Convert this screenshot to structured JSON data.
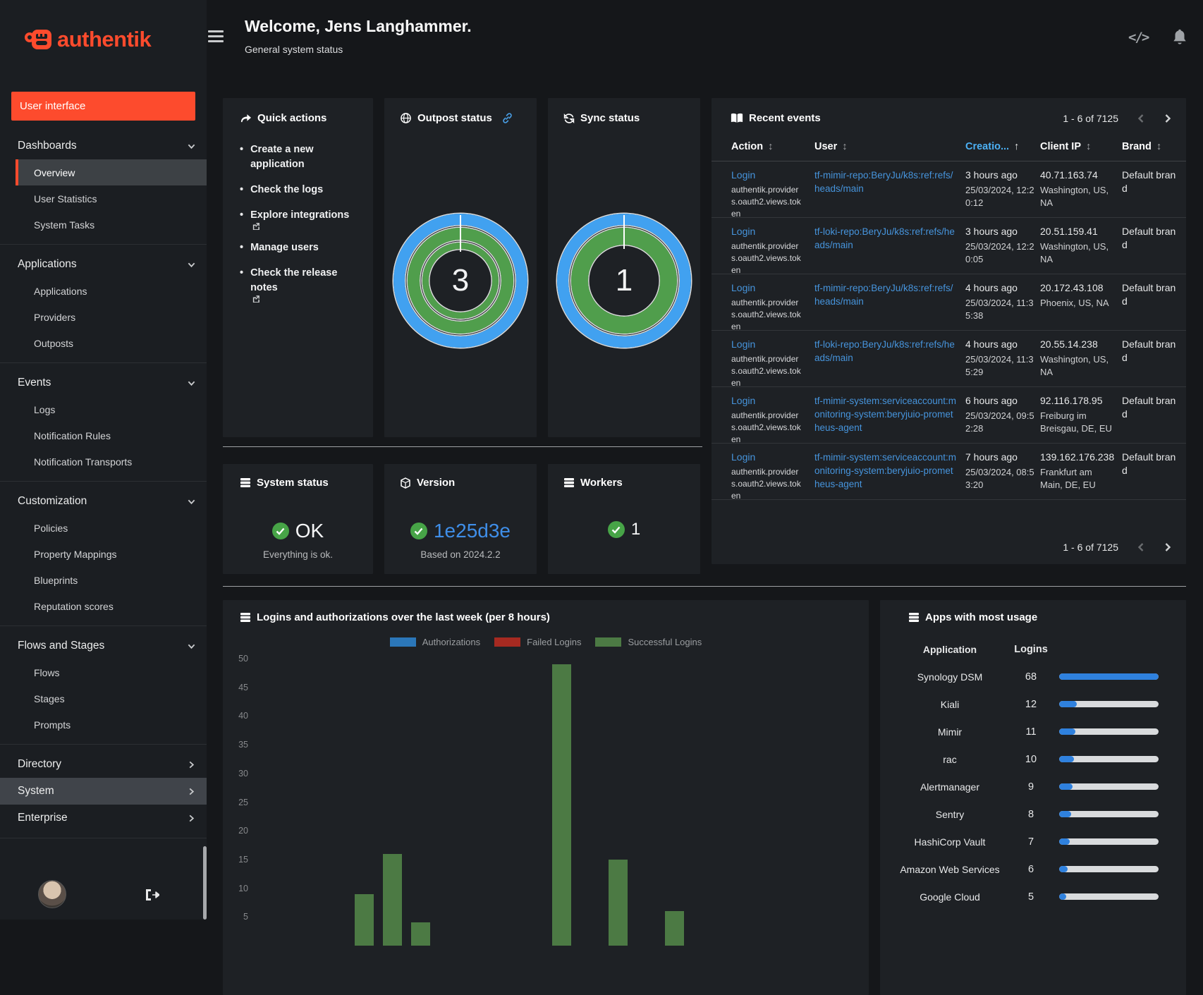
{
  "app": {
    "brand": "authentik"
  },
  "header": {
    "title": "Welcome, Jens Langhammer.",
    "subtitle": "General system status"
  },
  "sidebar": {
    "user_interface_label": "User interface",
    "groups": [
      {
        "label": "Dashboards",
        "state": "expanded",
        "items": [
          {
            "label": "Overview",
            "active": true
          },
          {
            "label": "User Statistics"
          },
          {
            "label": "System Tasks"
          }
        ]
      },
      {
        "label": "Applications",
        "state": "expanded",
        "items": [
          {
            "label": "Applications"
          },
          {
            "label": "Providers"
          },
          {
            "label": "Outposts"
          }
        ]
      },
      {
        "label": "Events",
        "state": "expanded",
        "items": [
          {
            "label": "Logs"
          },
          {
            "label": "Notification Rules"
          },
          {
            "label": "Notification Transports"
          }
        ]
      },
      {
        "label": "Customization",
        "state": "expanded",
        "items": [
          {
            "label": "Policies"
          },
          {
            "label": "Property Mappings"
          },
          {
            "label": "Blueprints"
          },
          {
            "label": "Reputation scores"
          }
        ]
      },
      {
        "label": "Flows and Stages",
        "state": "expanded",
        "items": [
          {
            "label": "Flows"
          },
          {
            "label": "Stages"
          },
          {
            "label": "Prompts"
          }
        ]
      },
      {
        "label": "Directory",
        "state": "collapsed",
        "items": []
      },
      {
        "label": "System",
        "state": "collapsed",
        "highlighted": true,
        "items": []
      },
      {
        "label": "Enterprise",
        "state": "collapsed",
        "items": []
      }
    ]
  },
  "quick_actions": {
    "title": "Quick actions",
    "links": [
      {
        "label": "Create a new application",
        "external": false
      },
      {
        "label": "Check the logs",
        "external": false
      },
      {
        "label": "Explore integrations",
        "external": true
      },
      {
        "label": "Manage users",
        "external": false
      },
      {
        "label": "Check the release notes",
        "external": true
      }
    ]
  },
  "outpost_status": {
    "title": "Outpost status",
    "value": "3"
  },
  "sync_status": {
    "title": "Sync status",
    "value": "1"
  },
  "system_status": {
    "title": "System status",
    "value": "OK",
    "subtitle": "Everything is ok."
  },
  "version": {
    "title": "Version",
    "value": "1e25d3e",
    "subtitle": "Based on 2024.2.2"
  },
  "workers": {
    "title": "Workers",
    "value": "1"
  },
  "events": {
    "title": "Recent events",
    "pagination": "1 - 6 of 7125",
    "columns": [
      "Action",
      "User",
      "Creatio...",
      "Client IP",
      "Brand"
    ],
    "sorted_column": "Creatio...",
    "rows": [
      {
        "action": "Login",
        "action_detail": "authentik.providers.oauth2.views.token",
        "user": "tf-mimir-repo:BeryJu/k8s:ref:refs/heads/main",
        "time_ago": "3 hours ago",
        "time_exact": "25/03/2024, 12:20:12",
        "ip": "40.71.163.74",
        "location": "Washington, US, NA",
        "brand": "Default brand"
      },
      {
        "action": "Login",
        "action_detail": "authentik.providers.oauth2.views.token",
        "user": "tf-loki-repo:BeryJu/k8s:ref:refs/heads/main",
        "time_ago": "3 hours ago",
        "time_exact": "25/03/2024, 12:20:05",
        "ip": "20.51.159.41",
        "location": "Washington, US, NA",
        "brand": "Default brand"
      },
      {
        "action": "Login",
        "action_detail": "authentik.providers.oauth2.views.token",
        "user": "tf-mimir-repo:BeryJu/k8s:ref:refs/heads/main",
        "time_ago": "4 hours ago",
        "time_exact": "25/03/2024, 11:35:38",
        "ip": "20.172.43.108",
        "location": "Phoenix, US, NA",
        "brand": "Default brand"
      },
      {
        "action": "Login",
        "action_detail": "authentik.providers.oauth2.views.token",
        "user": "tf-loki-repo:BeryJu/k8s:ref:refs/heads/main",
        "time_ago": "4 hours ago",
        "time_exact": "25/03/2024, 11:35:29",
        "ip": "20.55.14.238",
        "location": "Washington, US, NA",
        "brand": "Default brand"
      },
      {
        "action": "Login",
        "action_detail": "authentik.providers.oauth2.views.token",
        "user": "tf-mimir-system:serviceaccount:monitoring-system:beryjuio-prometheus-agent",
        "time_ago": "6 hours ago",
        "time_exact": "25/03/2024, 09:52:28",
        "ip": "92.116.178.95",
        "location": "Freiburg im Breisgau, DE, EU",
        "brand": "Default brand"
      },
      {
        "action": "Login",
        "action_detail": "authentik.providers.oauth2.views.token",
        "user": "tf-mimir-system:serviceaccount:monitoring-system:beryjuio-prometheus-agent",
        "time_ago": "7 hours ago",
        "time_exact": "25/03/2024, 08:53:20",
        "ip": "139.162.176.238",
        "location": "Frankfurt am Main, DE, EU",
        "brand": "Default brand"
      }
    ]
  },
  "chart_data": {
    "type": "bar",
    "title": "Logins and authorizations over the last week (per 8 hours)",
    "bins": 21,
    "series": [
      {
        "name": "Authorizations",
        "color": "#2b77b9",
        "values": [
          0,
          0,
          0,
          0,
          0,
          0,
          0,
          0,
          0,
          0,
          0,
          0,
          0,
          0,
          0,
          0,
          0,
          0,
          0,
          0,
          0
        ]
      },
      {
        "name": "Failed Logins",
        "color": "#a62a21",
        "values": [
          0,
          0,
          0,
          0,
          0,
          0,
          0,
          0,
          0,
          0,
          0,
          0,
          0,
          0,
          0,
          0,
          0,
          0,
          0,
          0,
          0
        ]
      },
      {
        "name": "Successful Logins",
        "color": "#4c7a44",
        "values": [
          0,
          0,
          0,
          9,
          16,
          4,
          0,
          0,
          0,
          0,
          49,
          0,
          15,
          0,
          6,
          0,
          0,
          0,
          0,
          0,
          0
        ]
      }
    ],
    "ylim": [
      0,
      50
    ],
    "yticks": [
      5,
      10,
      15,
      20,
      25,
      30,
      35,
      40,
      45,
      50
    ],
    "legend_position": "top",
    "grid": false
  },
  "apps_usage": {
    "title": "Apps with most usage",
    "columns": [
      "Application",
      "Logins"
    ],
    "max": 68,
    "rows": [
      {
        "app": "Synology DSM",
        "logins": 68
      },
      {
        "app": "Kiali",
        "logins": 12
      },
      {
        "app": "Mimir",
        "logins": 11
      },
      {
        "app": "rac",
        "logins": 10
      },
      {
        "app": "Alertmanager",
        "logins": 9
      },
      {
        "app": "Sentry",
        "logins": 8
      },
      {
        "app": "HashiCorp Vault",
        "logins": 7
      },
      {
        "app": "Amazon Web Services",
        "logins": 6
      },
      {
        "app": "Google Cloud",
        "logins": 5
      }
    ]
  },
  "colors": {
    "accent": "#fd4b2d",
    "link": "#4694dc",
    "sorted_header": "#4cb1f5",
    "donut_blue": "#41a1f0",
    "donut_green": "#509e4c",
    "success_green": "#47a447",
    "progress_fill": "#2f81de",
    "progress_track": "#d9dbdd"
  }
}
